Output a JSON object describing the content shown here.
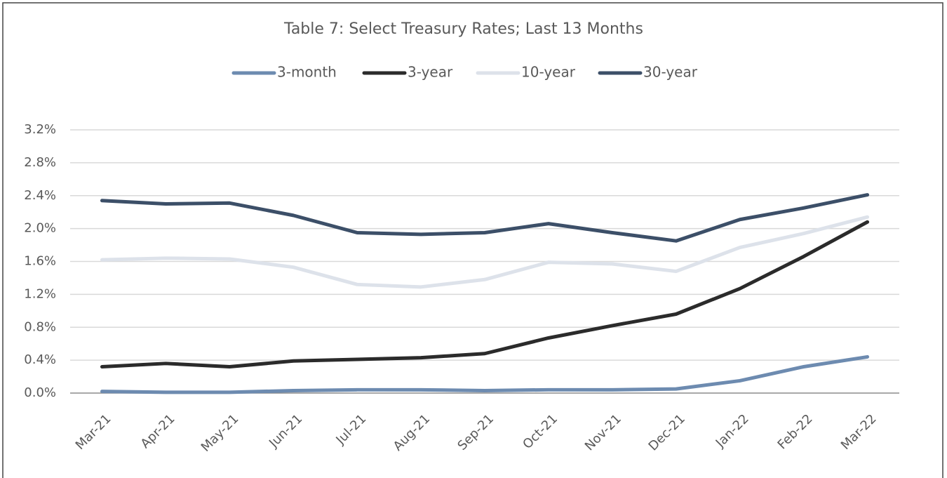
{
  "chart_data": {
    "type": "line",
    "title": "Table 7: Select Treasury Rates; Last 13 Months",
    "categories": [
      "Mar-21",
      "Apr-21",
      "May-21",
      "Jun-21",
      "Jul-21",
      "Aug-21",
      "Sep-21",
      "Oct-21",
      "Nov-21",
      "Dec-21",
      "Jan-22",
      "Feb-22",
      "Mar-22"
    ],
    "series": [
      {
        "name": "3-month",
        "color": "#6d8bb0",
        "values": [
          0.02,
          0.01,
          0.01,
          0.03,
          0.04,
          0.04,
          0.03,
          0.04,
          0.04,
          0.05,
          0.15,
          0.32,
          0.44
        ]
      },
      {
        "name": "3-year",
        "color": "#2b2b2b",
        "values": [
          0.32,
          0.36,
          0.32,
          0.39,
          0.41,
          0.43,
          0.48,
          0.67,
          0.82,
          0.96,
          1.27,
          1.66,
          2.08
        ]
      },
      {
        "name": "10-year",
        "color": "#dde2ea",
        "values": [
          1.62,
          1.64,
          1.63,
          1.53,
          1.32,
          1.29,
          1.38,
          1.59,
          1.57,
          1.48,
          1.77,
          1.94,
          2.14
        ]
      },
      {
        "name": "30-year",
        "color": "#3c4f68",
        "values": [
          2.34,
          2.3,
          2.31,
          2.16,
          1.95,
          1.93,
          1.95,
          2.06,
          1.95,
          1.85,
          2.11,
          2.25,
          2.41
        ]
      }
    ],
    "ylim": [
      0,
      3.2
    ],
    "yticks": [
      {
        "value": 0,
        "label": "0.0%"
      },
      {
        "value": 0.4,
        "label": "0.4%"
      },
      {
        "value": 0.8,
        "label": "0.8%"
      },
      {
        "value": 1.2,
        "label": "1.2%"
      },
      {
        "value": 1.6,
        "label": "1.6%"
      },
      {
        "value": 2.0,
        "label": "2.0%"
      },
      {
        "value": 2.4,
        "label": "2.4%"
      },
      {
        "value": 2.8,
        "label": "2.8%"
      },
      {
        "value": 3.2,
        "label": "3.2%"
      }
    ],
    "grid": true,
    "legend": "top"
  }
}
